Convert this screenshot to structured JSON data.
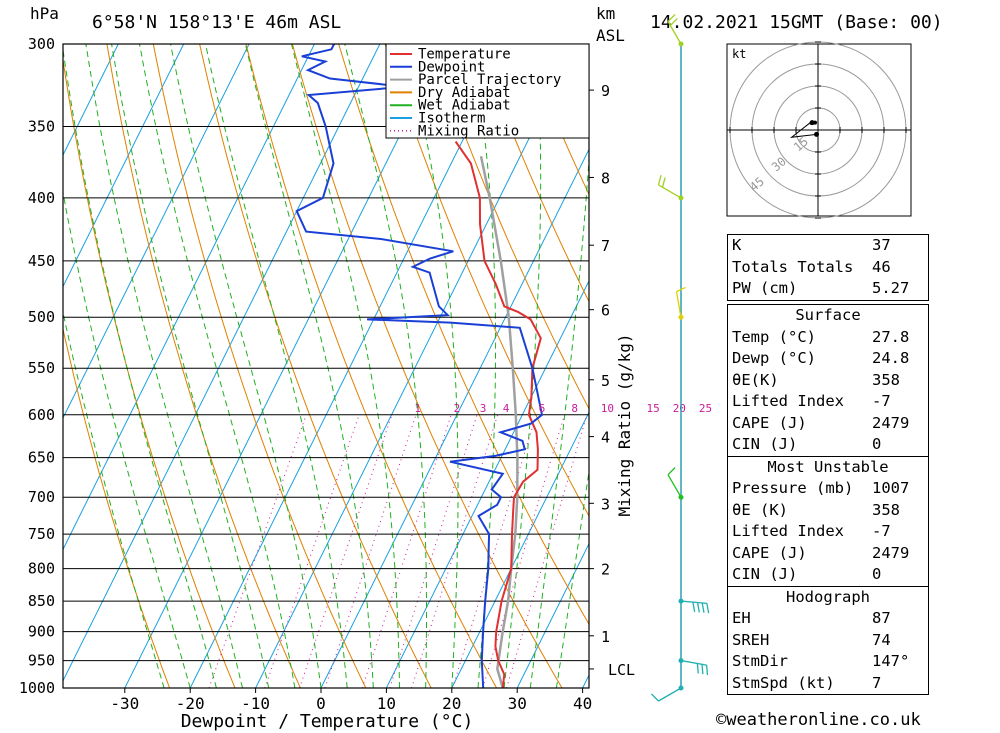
{
  "header": {
    "pressure_unit": "hPa",
    "location": "6°58'N 158°13'E 46m ASL",
    "height_unit_km": "km",
    "height_unit_asl": "ASL",
    "datetime": "14.02.2021 15GMT (Base: 00)"
  },
  "legend": [
    "Temperature",
    "Dewpoint",
    "Parcel Trajectory",
    "Dry Adiabat",
    "Wet Adiabat",
    "Isotherm",
    "Mixing Ratio"
  ],
  "colors": {
    "temperature": "#e03030",
    "dewpoint": "#1a3fd6",
    "parcel": "#a0a0a0",
    "dry_adiabat": "#e08000",
    "wet_adiabat": "#20b020",
    "isotherm": "#1aa0e0",
    "mixing_ratio": "#cc1a9a"
  },
  "chart_data": {
    "type": "skew-t",
    "xlabel": "Dewpoint / Temperature (°C)",
    "ylabel_right": "Mixing Ratio (g/kg)",
    "pressure_levels": [
      300,
      350,
      400,
      450,
      500,
      550,
      600,
      650,
      700,
      750,
      800,
      850,
      900,
      950,
      1000
    ],
    "temperature_ticks": [
      -30,
      -20,
      -10,
      0,
      10,
      20,
      30,
      40
    ],
    "height_ticks_km": [
      {
        "km": "1",
        "p": 907
      },
      {
        "km": "2",
        "p": 800
      },
      {
        "km": "3",
        "p": 708
      },
      {
        "km": "4",
        "p": 625
      },
      {
        "km": "5",
        "p": 562
      },
      {
        "km": "6",
        "p": 493
      },
      {
        "km": "7",
        "p": 437
      },
      {
        "km": "8",
        "p": 385
      },
      {
        "km": "9",
        "p": 327
      }
    ],
    "lcl": {
      "label": "LCL",
      "p": 965
    },
    "mixing_ratio_labels": [
      "1",
      "2",
      "3",
      "4",
      "6",
      "8",
      "10",
      "15",
      "20",
      "25"
    ],
    "mixing_ratio_label_temps": [
      -6,
      0,
      4,
      7.5,
      13,
      18,
      23,
      30,
      34,
      38
    ],
    "temperature_profile": [
      {
        "p": 1000,
        "t": 27.8
      },
      {
        "p": 975,
        "t": 27
      },
      {
        "p": 950,
        "t": 25
      },
      {
        "p": 925,
        "t": 23.5
      },
      {
        "p": 900,
        "t": 22.5
      },
      {
        "p": 850,
        "t": 21
      },
      {
        "p": 800,
        "t": 20
      },
      {
        "p": 750,
        "t": 17.5
      },
      {
        "p": 720,
        "t": 16
      },
      {
        "p": 700,
        "t": 15
      },
      {
        "p": 680,
        "t": 15.2
      },
      {
        "p": 665,
        "t": 16.5
      },
      {
        "p": 640,
        "t": 15
      },
      {
        "p": 620,
        "t": 13.5
      },
      {
        "p": 600,
        "t": 11
      },
      {
        "p": 580,
        "t": 10
      },
      {
        "p": 550,
        "t": 8
      },
      {
        "p": 520,
        "t": 7
      },
      {
        "p": 502,
        "t": 4
      },
      {
        "p": 495,
        "t": 1.5
      },
      {
        "p": 490,
        "t": -1
      },
      {
        "p": 470,
        "t": -4
      },
      {
        "p": 450,
        "t": -7.5
      },
      {
        "p": 420,
        "t": -11
      },
      {
        "p": 400,
        "t": -13
      },
      {
        "p": 375,
        "t": -17
      },
      {
        "p": 360,
        "t": -21
      }
    ],
    "dewpoint_profile": [
      {
        "p": 1000,
        "td": 24.8
      },
      {
        "p": 950,
        "td": 22.5
      },
      {
        "p": 900,
        "td": 20.5
      },
      {
        "p": 850,
        "td": 18.5
      },
      {
        "p": 800,
        "td": 16.5
      },
      {
        "p": 770,
        "td": 15
      },
      {
        "p": 750,
        "td": 14
      },
      {
        "p": 725,
        "td": 11
      },
      {
        "p": 710,
        "td": 13
      },
      {
        "p": 700,
        "td": 13
      },
      {
        "p": 690,
        "td": 11
      },
      {
        "p": 670,
        "td": 11.5
      },
      {
        "p": 655,
        "td": 2.5
      },
      {
        "p": 648,
        "td": 9
      },
      {
        "p": 640,
        "td": 13
      },
      {
        "p": 630,
        "td": 12
      },
      {
        "p": 620,
        "td": 8
      },
      {
        "p": 610,
        "td": 12
      },
      {
        "p": 600,
        "td": 13
      },
      {
        "p": 550,
        "td": 8
      },
      {
        "p": 510,
        "td": 3
      },
      {
        "p": 505,
        "td": -8
      },
      {
        "p": 502,
        "td": -21
      },
      {
        "p": 498,
        "td": -9
      },
      {
        "p": 490,
        "td": -11
      },
      {
        "p": 460,
        "td": -15
      },
      {
        "p": 455,
        "td": -18
      },
      {
        "p": 448,
        "td": -16
      },
      {
        "p": 442,
        "td": -13
      },
      {
        "p": 432,
        "td": -25
      },
      {
        "p": 426,
        "td": -37
      },
      {
        "p": 410,
        "td": -40
      },
      {
        "p": 400,
        "td": -37
      },
      {
        "p": 375,
        "td": -38
      },
      {
        "p": 350,
        "td": -42
      },
      {
        "p": 335,
        "td": -45
      },
      {
        "p": 330,
        "td": -47
      },
      {
        "p": 325,
        "td": -33
      },
      {
        "p": 320,
        "td": -45
      },
      {
        "p": 315,
        "td": -49
      },
      {
        "p": 310,
        "td": -47
      },
      {
        "p": 307,
        "td": -51
      },
      {
        "p": 303,
        "td": -47
      },
      {
        "p": 300,
        "td": -47
      }
    ],
    "parcel_profile": [
      {
        "p": 1000,
        "t": 27.8
      },
      {
        "p": 965,
        "t": 25.5
      },
      {
        "p": 900,
        "t": 23.5
      },
      {
        "p": 850,
        "t": 22
      },
      {
        "p": 800,
        "t": 20
      },
      {
        "p": 750,
        "t": 18
      },
      {
        "p": 700,
        "t": 15.5
      },
      {
        "p": 650,
        "t": 12.5
      },
      {
        "p": 600,
        "t": 9
      },
      {
        "p": 550,
        "t": 5
      },
      {
        "p": 500,
        "t": 0.5
      },
      {
        "p": 450,
        "t": -5
      },
      {
        "p": 400,
        "t": -11.5
      },
      {
        "p": 370,
        "t": -16
      }
    ],
    "wind_barbs": [
      {
        "p": 1000,
        "dir": 240,
        "speed": 7
      },
      {
        "p": 950,
        "dir": 100,
        "speed": 15
      },
      {
        "p": 850,
        "dir": 95,
        "speed": 20
      },
      {
        "p": 700,
        "dir": 330,
        "speed": 5
      },
      {
        "p": 500,
        "dir": 350,
        "speed": 5
      },
      {
        "p": 400,
        "dir": 300,
        "speed": 10
      },
      {
        "p": 300,
        "dir": 330,
        "speed": 10
      }
    ]
  },
  "hodograph": {
    "unit_label": "kt",
    "ring_labels": [
      "15",
      "30",
      "45"
    ],
    "trace": [
      {
        "u": -1,
        "v": -3
      },
      {
        "u": -18,
        "v": -5
      },
      {
        "u": -4,
        "v": 6
      },
      {
        "u": -3,
        "v": 4
      },
      {
        "u": -5,
        "v": 4
      },
      {
        "u": -4,
        "v": 5
      }
    ]
  },
  "indices": [
    {
      "label": "K",
      "value": "37"
    },
    {
      "label": "Totals Totals",
      "value": "46"
    },
    {
      "label": "PW (cm)",
      "value": "5.27"
    }
  ],
  "surface": {
    "title": "Surface",
    "rows": [
      {
        "label": "Temp (°C)",
        "value": "27.8"
      },
      {
        "label": "Dewp (°C)",
        "value": "24.8"
      },
      {
        "label": "θE(K)",
        "value": "358"
      },
      {
        "label": "Lifted Index",
        "value": "-7"
      },
      {
        "label": "CAPE (J)",
        "value": "2479"
      },
      {
        "label": "CIN (J)",
        "value": "0"
      }
    ]
  },
  "most_unstable": {
    "title": "Most Unstable",
    "rows": [
      {
        "label": "Pressure (mb)",
        "value": "1007"
      },
      {
        "label": "θE (K)",
        "value": "358"
      },
      {
        "label": "Lifted Index",
        "value": "-7"
      },
      {
        "label": "CAPE (J)",
        "value": "2479"
      },
      {
        "label": "CIN (J)",
        "value": "0"
      }
    ]
  },
  "hodograph_params": {
    "title": "Hodograph",
    "rows": [
      {
        "label": "EH",
        "value": "87"
      },
      {
        "label": "SREH",
        "value": "74"
      },
      {
        "label": "StmDir",
        "value": "147°"
      },
      {
        "label": "StmSpd (kt)",
        "value": "7"
      }
    ]
  },
  "copyright": "©weatheronline.co.uk"
}
